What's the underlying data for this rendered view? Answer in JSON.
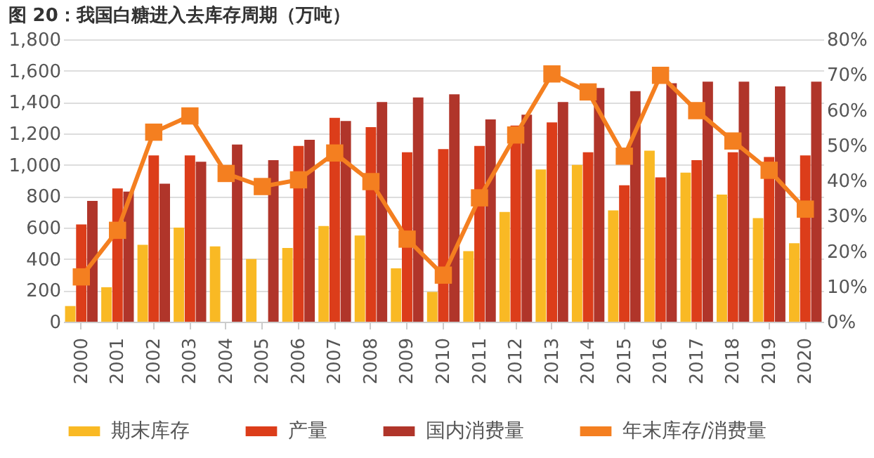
{
  "chart_data": {
    "type": "bar",
    "title": "图 20：我国白糖进入去库存周期（万吨）",
    "categories": [
      "2000",
      "2001",
      "2002",
      "2003",
      "2004",
      "2005",
      "2006",
      "2007",
      "2008",
      "2009",
      "2010",
      "2011",
      "2012",
      "2013",
      "2014",
      "2015",
      "2016",
      "2017",
      "2018",
      "2019",
      "2020"
    ],
    "series": [
      {
        "name": "期末库存",
        "color": "#f9b924",
        "values": [
          100,
          220,
          490,
          600,
          480,
          400,
          470,
          610,
          550,
          340,
          190,
          450,
          700,
          970,
          1000,
          710,
          1090,
          950,
          810,
          660,
          500
        ]
      },
      {
        "name": "产量",
        "color": "#dc3d1a",
        "values": [
          620,
          850,
          1060,
          1060,
          null,
          null,
          1120,
          1300,
          1240,
          1080,
          1100,
          1120,
          1250,
          1270,
          1080,
          870,
          920,
          1030,
          1080,
          1050,
          1060
        ]
      },
      {
        "name": "国内消费量",
        "color": "#b0352a",
        "values": [
          770,
          830,
          880,
          1020,
          1130,
          1030,
          1160,
          1280,
          1400,
          1430,
          1450,
          1290,
          1320,
          1400,
          1490,
          1470,
          1520,
          1530,
          1530,
          1500,
          1530
        ]
      },
      {
        "name": "年末库存/消费量",
        "color": "#f47f20",
        "type": "line",
        "axis": "y2",
        "marker": "square",
        "values": [
          12.7,
          25.9,
          53.7,
          58.3,
          42.0,
          38.3,
          40.2,
          47.8,
          39.7,
          23.4,
          13.2,
          35.1,
          52.9,
          70.2,
          65.1,
          46.9,
          69.8,
          59.8,
          51.2,
          42.9,
          31.9
        ]
      }
    ],
    "ylim": [
      0,
      1800
    ],
    "yticks": [
      {
        "value": 0,
        "label": "0"
      },
      {
        "value": 200,
        "label": "200"
      },
      {
        "value": 400,
        "label": "400"
      },
      {
        "value": 600,
        "label": "600"
      },
      {
        "value": 800,
        "label": "800"
      },
      {
        "value": 1000,
        "label": "1,000"
      },
      {
        "value": 1200,
        "label": "1,200"
      },
      {
        "value": 1400,
        "label": "1,400"
      },
      {
        "value": 1600,
        "label": "1,600"
      },
      {
        "value": 1800,
        "label": "1,800"
      }
    ],
    "y2lim": [
      0,
      80
    ],
    "y2ticks": [
      {
        "value": 0,
        "label": "0%"
      },
      {
        "value": 10,
        "label": "10%"
      },
      {
        "value": 20,
        "label": "20%"
      },
      {
        "value": 30,
        "label": "30%"
      },
      {
        "value": 40,
        "label": "40%"
      },
      {
        "value": 50,
        "label": "50%"
      },
      {
        "value": 60,
        "label": "60%"
      },
      {
        "value": 70,
        "label": "70%"
      },
      {
        "value": 80,
        "label": "80%"
      }
    ],
    "grid": "y",
    "legend": "bottom"
  }
}
